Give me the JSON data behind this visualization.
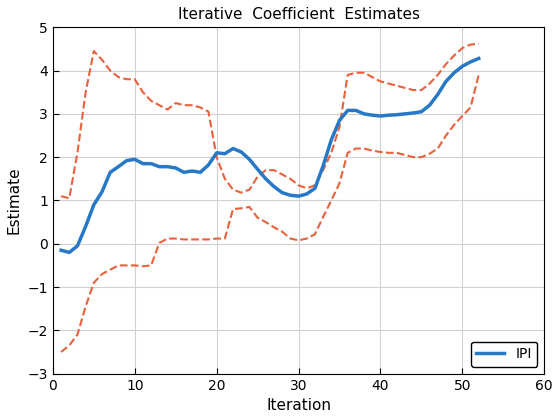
{
  "title": "Iterative  Coefficient  Estimates",
  "xlabel": "Iteration",
  "ylabel": "Estimate",
  "xlim": [
    0,
    60
  ],
  "ylim": [
    -3,
    5
  ],
  "xticks": [
    0,
    10,
    20,
    30,
    40,
    50,
    60
  ],
  "yticks": [
    -3,
    -2,
    -1,
    0,
    1,
    2,
    3,
    4,
    5
  ],
  "main_color": "#2878C8",
  "ci_color": "#E8603C",
  "legend_label": "IPI",
  "main_linewidth": 2.5,
  "ci_linewidth": 1.5,
  "x": [
    1,
    2,
    3,
    4,
    5,
    6,
    7,
    8,
    9,
    10,
    11,
    12,
    13,
    14,
    15,
    16,
    17,
    18,
    19,
    20,
    21,
    22,
    23,
    24,
    25,
    26,
    27,
    28,
    29,
    30,
    31,
    32,
    33,
    34,
    35,
    36,
    37,
    38,
    39,
    40,
    41,
    42,
    43,
    44,
    45,
    46,
    47,
    48,
    49,
    50,
    51,
    52
  ],
  "y_main": [
    -0.15,
    -0.2,
    -0.05,
    0.4,
    0.9,
    1.2,
    1.65,
    1.78,
    1.92,
    1.95,
    1.85,
    1.85,
    1.78,
    1.78,
    1.75,
    1.65,
    1.68,
    1.65,
    1.82,
    2.1,
    2.08,
    2.2,
    2.12,
    1.95,
    1.72,
    1.5,
    1.32,
    1.18,
    1.12,
    1.1,
    1.15,
    1.28,
    1.8,
    2.4,
    2.85,
    3.08,
    3.08,
    3.0,
    2.97,
    2.95,
    2.97,
    2.98,
    3.0,
    3.02,
    3.05,
    3.2,
    3.45,
    3.75,
    3.95,
    4.1,
    4.2,
    4.28
  ],
  "y_upper": [
    1.1,
    1.05,
    2.1,
    3.5,
    4.45,
    4.25,
    4.0,
    3.85,
    3.8,
    3.8,
    3.5,
    3.3,
    3.2,
    3.1,
    3.25,
    3.2,
    3.2,
    3.15,
    3.05,
    2.0,
    1.5,
    1.25,
    1.18,
    1.25,
    1.55,
    1.7,
    1.7,
    1.6,
    1.5,
    1.35,
    1.28,
    1.35,
    1.7,
    2.1,
    2.7,
    3.9,
    3.95,
    3.95,
    3.85,
    3.75,
    3.7,
    3.65,
    3.6,
    3.55,
    3.55,
    3.7,
    3.9,
    4.15,
    4.35,
    4.52,
    4.6,
    4.62
  ],
  "y_lower": [
    -2.5,
    -2.35,
    -2.1,
    -1.45,
    -0.9,
    -0.7,
    -0.6,
    -0.5,
    -0.5,
    -0.5,
    -0.52,
    -0.5,
    0.02,
    0.12,
    0.12,
    0.1,
    0.1,
    0.1,
    0.1,
    0.12,
    0.12,
    0.8,
    0.82,
    0.85,
    0.6,
    0.5,
    0.38,
    0.28,
    0.12,
    0.08,
    0.12,
    0.22,
    0.62,
    1.0,
    1.4,
    2.1,
    2.2,
    2.2,
    2.15,
    2.12,
    2.1,
    2.1,
    2.05,
    2.0,
    2.0,
    2.08,
    2.2,
    2.5,
    2.75,
    2.95,
    3.15,
    3.9
  ]
}
